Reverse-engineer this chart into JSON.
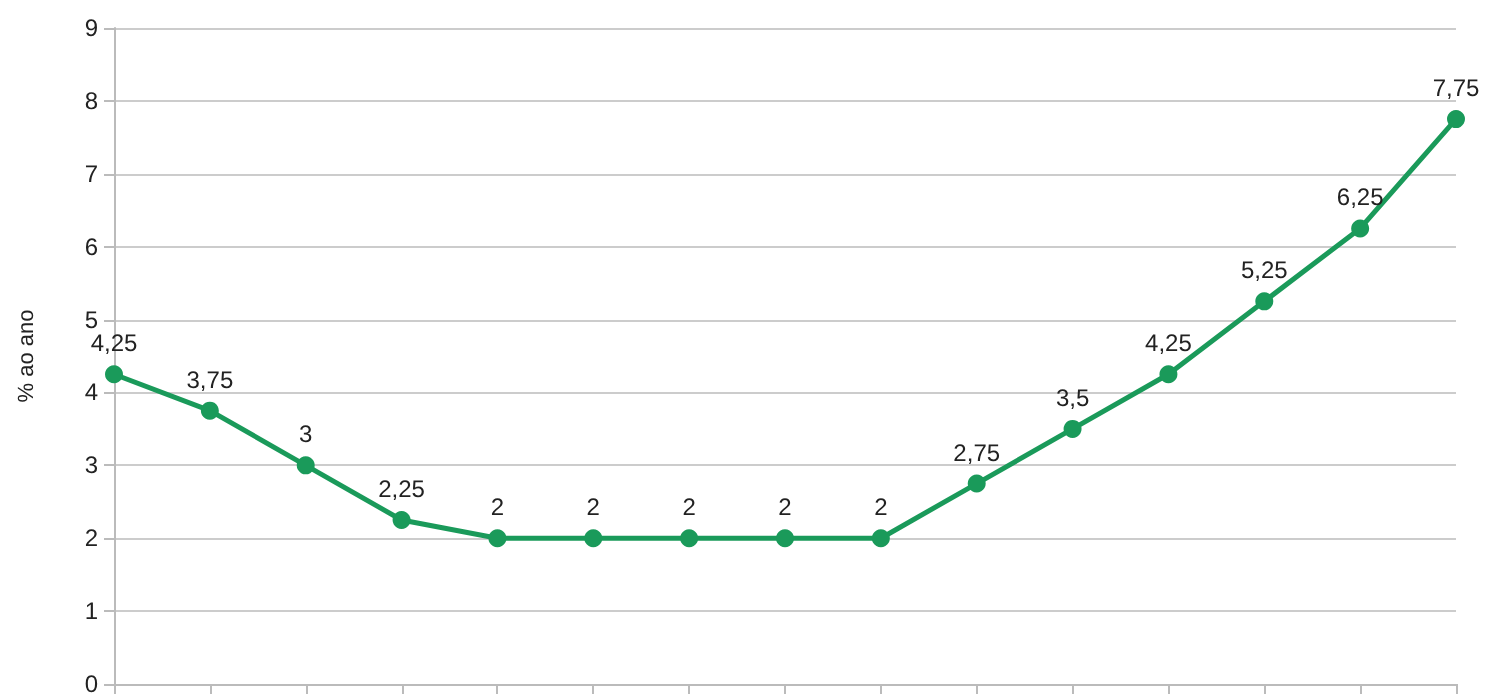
{
  "chart_data": {
    "type": "line",
    "ylabel": "% ao ano",
    "categories": [
      null,
      null,
      null,
      null,
      null,
      null,
      null,
      null,
      null,
      null,
      null,
      null,
      null,
      null,
      null
    ],
    "series": [
      {
        "color": "#1a9a5a",
        "values": [
          4.25,
          3.75,
          3,
          2.25,
          2,
          2,
          2,
          2,
          2,
          2.75,
          3.5,
          4.25,
          5.25,
          6.25,
          7.75
        ],
        "value_labels": [
          "4,25",
          "3,75",
          "3",
          "2,25",
          "2",
          "2",
          "2",
          "2",
          "2",
          "2,75",
          "3,5",
          "4,25",
          "5,25",
          "6,25",
          "7,75"
        ]
      }
    ],
    "ylim": [
      0,
      9
    ],
    "yticks": [
      0,
      1,
      2,
      3,
      4,
      5,
      6,
      7,
      8,
      9
    ],
    "grid": "y",
    "marker": "circle",
    "line_style": "solid"
  }
}
